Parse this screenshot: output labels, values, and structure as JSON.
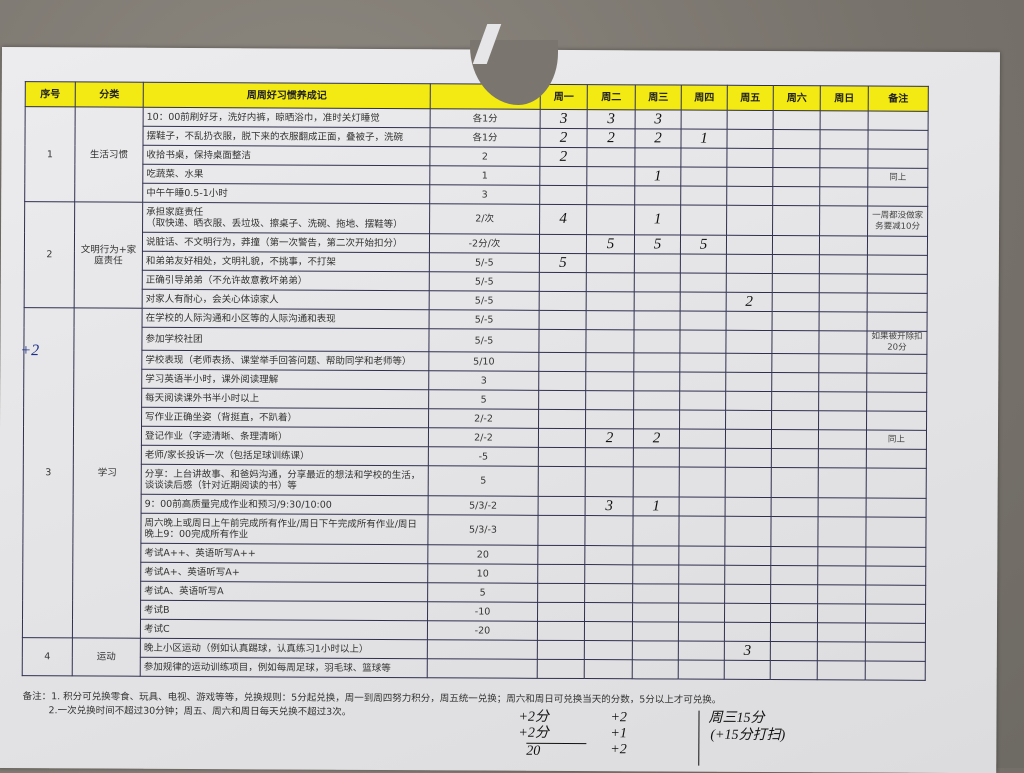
{
  "header": {
    "seq": "序号",
    "category": "分类",
    "title": "周周好习惯养成记",
    "score": "",
    "days": [
      "周一",
      "周二",
      "周三",
      "周四",
      "周五",
      "周六",
      "周日"
    ],
    "remark": "备注"
  },
  "groups": [
    {
      "no": "1",
      "category": "生活习惯",
      "rows": [
        {
          "desc": "10：00前刷好牙，洗好内裤，晾晒浴巾，准时关灯睡觉",
          "score": "各1分",
          "marks": [
            "3",
            "3",
            "3",
            "",
            "",
            "",
            ""
          ],
          "remark": ""
        },
        {
          "desc": "摆鞋子，不乱扔衣服，脱下来的衣服翻成正面，叠被子，洗碗",
          "score": "各1分",
          "marks": [
            "2",
            "2",
            "2",
            "1",
            "",
            "",
            ""
          ],
          "remark": ""
        },
        {
          "desc": "收拾书桌，保持桌面整洁",
          "score": "2",
          "marks": [
            "2",
            "",
            "",
            "",
            "",
            "",
            ""
          ],
          "remark": ""
        },
        {
          "desc": "吃蔬菜、水果",
          "score": "1",
          "marks": [
            "",
            "",
            "1",
            "",
            "",
            "",
            ""
          ],
          "remark": "同上"
        },
        {
          "desc": "中午午睡0.5-1小时",
          "score": "3",
          "marks": [
            "",
            "",
            "",
            "",
            "",
            "",
            ""
          ],
          "remark": ""
        }
      ]
    },
    {
      "no": "2",
      "category": "文明行为+家庭责任",
      "rows": [
        {
          "desc": "承担家庭责任\n（取快递、晒衣服、丢垃圾、擦桌子、洗碗、拖地、摆鞋等）",
          "score": "2/次",
          "marks": [
            "4",
            "",
            "1",
            "",
            "",
            "",
            ""
          ],
          "remark": "一周都没做家务要减10分",
          "tall": true
        },
        {
          "desc": "说脏话、不文明行为，莽撞（第一次警告，第二次开始扣分）",
          "score": "-2分/次",
          "marks": [
            "",
            "5",
            "5",
            "5",
            "",
            "",
            ""
          ],
          "remark": ""
        },
        {
          "desc": "和弟弟友好相处，文明礼貌，不挑事，不打架",
          "score": "5/-5",
          "marks": [
            "5",
            "",
            "",
            "",
            "",
            "",
            ""
          ],
          "remark": ""
        },
        {
          "desc": "正确引导弟弟（不允许故意教坏弟弟）",
          "score": "5/-5",
          "marks": [
            "",
            "",
            "",
            "",
            "",
            "",
            ""
          ],
          "remark": ""
        },
        {
          "desc": "对家人有耐心，会关心体谅家人",
          "score": "5/-5",
          "marks": [
            "",
            "",
            "",
            "",
            "2",
            "",
            ""
          ],
          "remark": ""
        }
      ]
    },
    {
      "no": "3",
      "category": "学习",
      "rows": [
        {
          "desc": "在学校的人际沟通和小区等的人际沟通和表现",
          "score": "5/-5",
          "marks": [
            "",
            "",
            "",
            "",
            "",
            "",
            ""
          ],
          "remark": ""
        },
        {
          "desc": "参加学校社团",
          "score": "5/-5",
          "marks": [
            "",
            "",
            "",
            "",
            "",
            "",
            ""
          ],
          "remark": "如果被开除扣20分"
        },
        {
          "desc": "学校表现（老师表扬、课堂举手回答问题、帮助同学和老师等）",
          "score": "5/10",
          "marks": [
            "",
            "",
            "",
            "",
            "",
            "",
            ""
          ],
          "remark": ""
        },
        {
          "desc": "学习英语半小时，课外阅读理解",
          "score": "3",
          "marks": [
            "",
            "",
            "",
            "",
            "",
            "",
            ""
          ],
          "remark": ""
        },
        {
          "desc": "每天阅读课外书半小时以上",
          "score": "5",
          "marks": [
            "",
            "",
            "",
            "",
            "",
            "",
            ""
          ],
          "remark": ""
        },
        {
          "desc": "写作业正确坐姿（背挺直，不趴着）",
          "score": "2/-2",
          "marks": [
            "",
            "",
            "",
            "",
            "",
            "",
            ""
          ],
          "remark": ""
        },
        {
          "desc": "登记作业（字迹清晰、条理清晰）",
          "score": "2/-2",
          "marks": [
            "",
            "2",
            "2",
            "",
            "",
            "",
            ""
          ],
          "remark": "同上"
        },
        {
          "desc": "老师/家长投诉一次（包括足球训练课）",
          "score": "-5",
          "marks": [
            "",
            "",
            "",
            "",
            "",
            "",
            ""
          ],
          "remark": ""
        },
        {
          "desc": "分享：上台讲故事、和爸妈沟通，分享最近的想法和学校的生活，谈谈读后感（针对近期阅读的书）等",
          "score": "5",
          "marks": [
            "",
            "",
            "",
            "",
            "",
            "",
            ""
          ],
          "remark": "",
          "tall": true
        },
        {
          "desc": "9：00前高质量完成作业和预习/9:30/10:00",
          "score": "5/3/-2",
          "marks": [
            "",
            "3",
            "1",
            "",
            "",
            "",
            ""
          ],
          "remark": ""
        },
        {
          "desc": "周六晚上或周日上午前完成所有作业/周日下午完成所有作业/周日晚上9：00完成所有作业",
          "score": "5/3/-3",
          "marks": [
            "",
            "",
            "",
            "",
            "",
            "",
            ""
          ],
          "remark": "",
          "tall": true
        },
        {
          "desc": "考试A++、英语听写A++",
          "score": "20",
          "marks": [
            "",
            "",
            "",
            "",
            "",
            "",
            ""
          ],
          "remark": ""
        },
        {
          "desc": "考试A+、英语听写A+",
          "score": "10",
          "marks": [
            "",
            "",
            "",
            "",
            "",
            "",
            ""
          ],
          "remark": ""
        },
        {
          "desc": "考试A、英语听写A",
          "score": "5",
          "marks": [
            "",
            "",
            "",
            "",
            "",
            "",
            ""
          ],
          "remark": ""
        },
        {
          "desc": "考试B",
          "score": "-10",
          "marks": [
            "",
            "",
            "",
            "",
            "",
            "",
            ""
          ],
          "remark": ""
        },
        {
          "desc": "考试C",
          "score": "-20",
          "marks": [
            "",
            "",
            "",
            "",
            "",
            "",
            ""
          ],
          "remark": ""
        }
      ]
    },
    {
      "no": "4",
      "category": "运动",
      "rows": [
        {
          "desc": "晚上小区运动（例如认真踢球，认真练习1小时以上）",
          "score": "",
          "marks": [
            "",
            "",
            "",
            "",
            "3",
            "",
            ""
          ],
          "remark": ""
        },
        {
          "desc": "参加规律的运动训练项目，例如每周足球，羽毛球、篮球等",
          "score": "",
          "marks": [
            "",
            "",
            "",
            "",
            "",
            "",
            ""
          ],
          "remark": ""
        }
      ]
    }
  ],
  "notes": {
    "line1": "备注：1. 积分可兑换零食、玩具、电视、游戏等等，兑换规则：5分起兑换，周一到周四努力积分，周五统一兑换；周六和周日可兑换当天的分数，5分以上才可兑换。",
    "line2": "2.一次兑换时间不超过30分钟；周五、周六和周日每天兑换不超过3次。"
  },
  "handwriting": {
    "margin": "+2",
    "footer_a1": "+2分",
    "footer_a2": "+2分",
    "footer_total": "20",
    "footer_b1": "+2",
    "footer_b2": "+1",
    "footer_b3": "+2",
    "footer_c1": "周三15分",
    "footer_c2": "(+15分打扫)"
  },
  "colors": {
    "header_bg": "#f2ea12",
    "grid": "#2f3050",
    "ink": "#111111"
  }
}
